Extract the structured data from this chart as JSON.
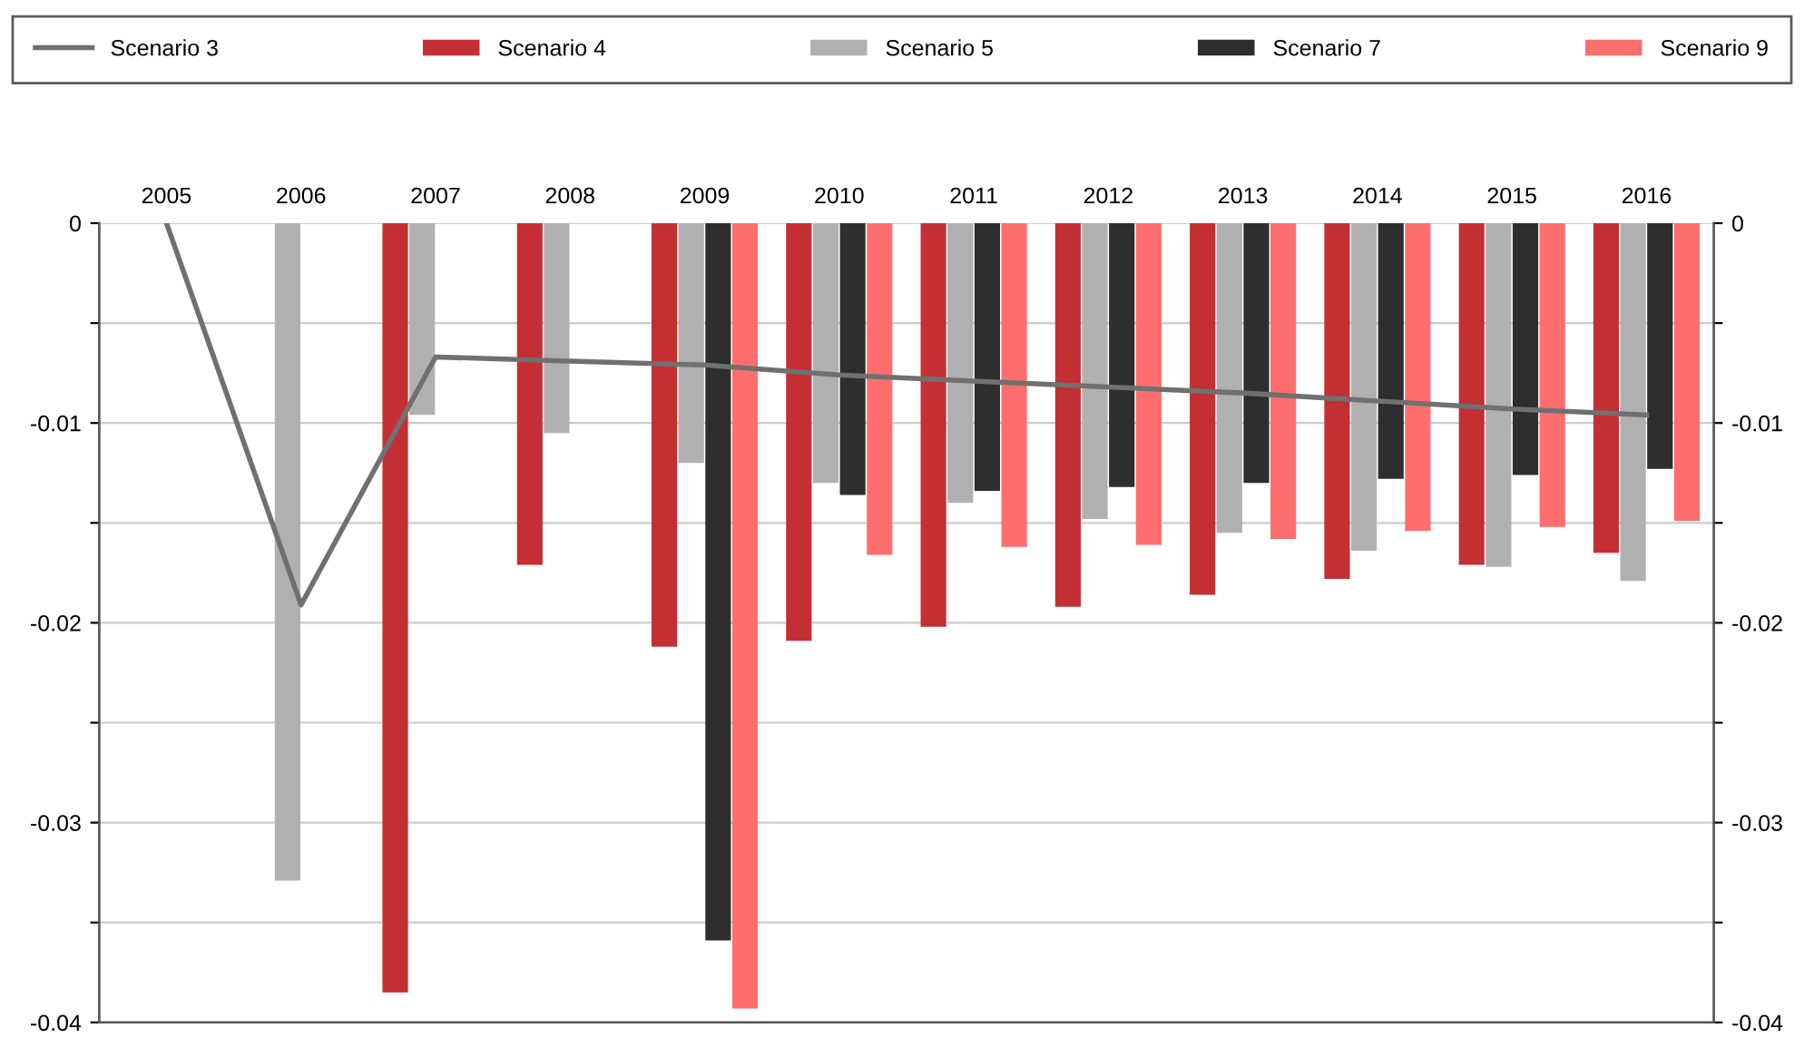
{
  "chart_data": {
    "type": "bar",
    "categories": [
      "2005",
      "2006",
      "2007",
      "2008",
      "2009",
      "2010",
      "2011",
      "2012",
      "2013",
      "2014",
      "2015",
      "2016"
    ],
    "series": [
      {
        "name": "Scenario 3",
        "type": "line",
        "color": "#707070",
        "values": [
          0,
          -0.0191,
          -0.0067,
          -0.0069,
          -0.0071,
          -0.0076,
          -0.0079,
          -0.0082,
          -0.0085,
          -0.0089,
          -0.0093,
          -0.0096
        ]
      },
      {
        "name": "Scenario 4",
        "color": "#c42f34",
        "values": [
          0,
          0,
          -0.0385,
          -0.0171,
          -0.0212,
          -0.0209,
          -0.0202,
          -0.0192,
          -0.0186,
          -0.0178,
          -0.0171,
          -0.0165
        ]
      },
      {
        "name": "Scenario 5",
        "color": "#b0b0b0",
        "values": [
          0,
          -0.0329,
          -0.0096,
          -0.0105,
          -0.012,
          -0.013,
          -0.014,
          -0.0148,
          -0.0155,
          -0.0164,
          -0.0172,
          -0.0179
        ]
      },
      {
        "name": "Scenario 7",
        "color": "#2e2e2e",
        "values": [
          0,
          0,
          0,
          0,
          -0.0359,
          -0.0136,
          -0.0134,
          -0.0132,
          -0.013,
          -0.0128,
          -0.0126,
          -0.0123
        ]
      },
      {
        "name": "Scenario 9",
        "color": "#ff6e6e",
        "values": [
          0,
          0,
          0,
          0,
          -0.0393,
          -0.0166,
          -0.0162,
          -0.0161,
          -0.0158,
          -0.0154,
          -0.0152,
          -0.0149
        ]
      }
    ],
    "ylim": [
      -0.04,
      0
    ],
    "yticks": [
      0,
      {
        "value": -0.005,
        "label": null
      },
      {
        "value": -0.01,
        "label": "-0.01"
      },
      {
        "value": -0.015,
        "label": null
      },
      {
        "value": -0.02,
        "label": "-0.02"
      },
      {
        "value": -0.025,
        "label": null
      },
      {
        "value": -0.03,
        "label": "-0.03"
      },
      {
        "value": -0.035,
        "label": null
      },
      {
        "value": -0.04,
        "label": "-0.04"
      }
    ],
    "y2lim": [
      -0.04,
      0
    ],
    "y2ticks": [
      0,
      {
        "value": -0.005,
        "label": null
      },
      {
        "value": -0.01,
        "label": "-0.01"
      },
      {
        "value": -0.015,
        "label": null
      },
      {
        "value": -0.02,
        "label": "-0.02"
      },
      {
        "value": -0.025,
        "label": null
      },
      {
        "value": -0.03,
        "label": "-0.03"
      },
      {
        "value": -0.035,
        "label": null
      },
      {
        "value": -0.04,
        "label": "-0.04"
      }
    ],
    "grid": "y",
    "legend": "top",
    "marker": "none",
    "line_style": "solid"
  }
}
